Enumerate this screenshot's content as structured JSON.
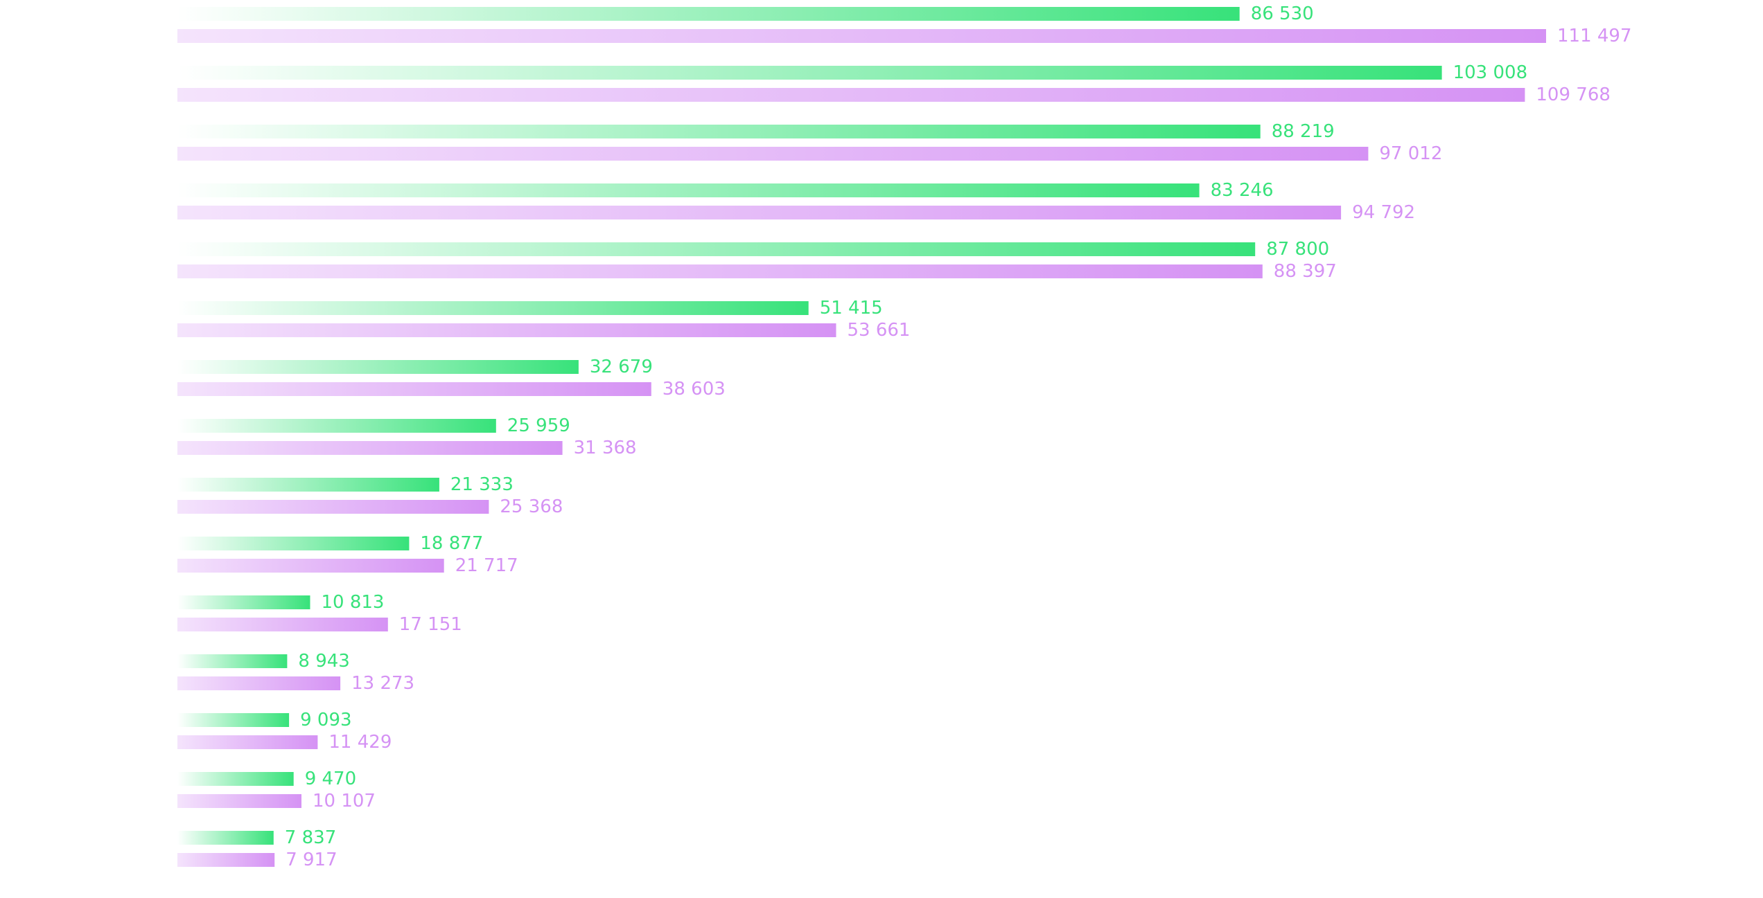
{
  "chart_data": {
    "type": "bar",
    "orientation": "horizontal",
    "grouped": true,
    "title": "",
    "xlabel": "",
    "ylabel": "",
    "grid": false,
    "xlim": [
      0,
      111497
    ],
    "series": [
      {
        "color": "#37e27a",
        "values": [
          86530,
          103008,
          88219,
          83246,
          87800,
          51415,
          32679,
          25959,
          21333,
          18877,
          10813,
          8943,
          9093,
          9470,
          7837
        ],
        "labels": [
          "86 530",
          "103 008",
          "88 219",
          "83 246",
          "87 800",
          "51 415",
          "32 679",
          "25 959",
          "21 333",
          "18 877",
          "10 813",
          "8 943",
          "9 093",
          "9 470",
          "7 837"
        ]
      },
      {
        "color": "#d592f4",
        "values": [
          111497,
          109768,
          97012,
          94792,
          88397,
          53661,
          38603,
          31368,
          25368,
          21717,
          17151,
          13273,
          11429,
          10107,
          7917
        ],
        "labels": [
          "111 497",
          "109 768",
          "97 012",
          "94 792",
          "88 397",
          "53 661",
          "38 603",
          "31 368",
          "25 368",
          "21 717",
          "17 151",
          "13 273",
          "11 429",
          "10 107",
          "7 917"
        ]
      }
    ]
  }
}
